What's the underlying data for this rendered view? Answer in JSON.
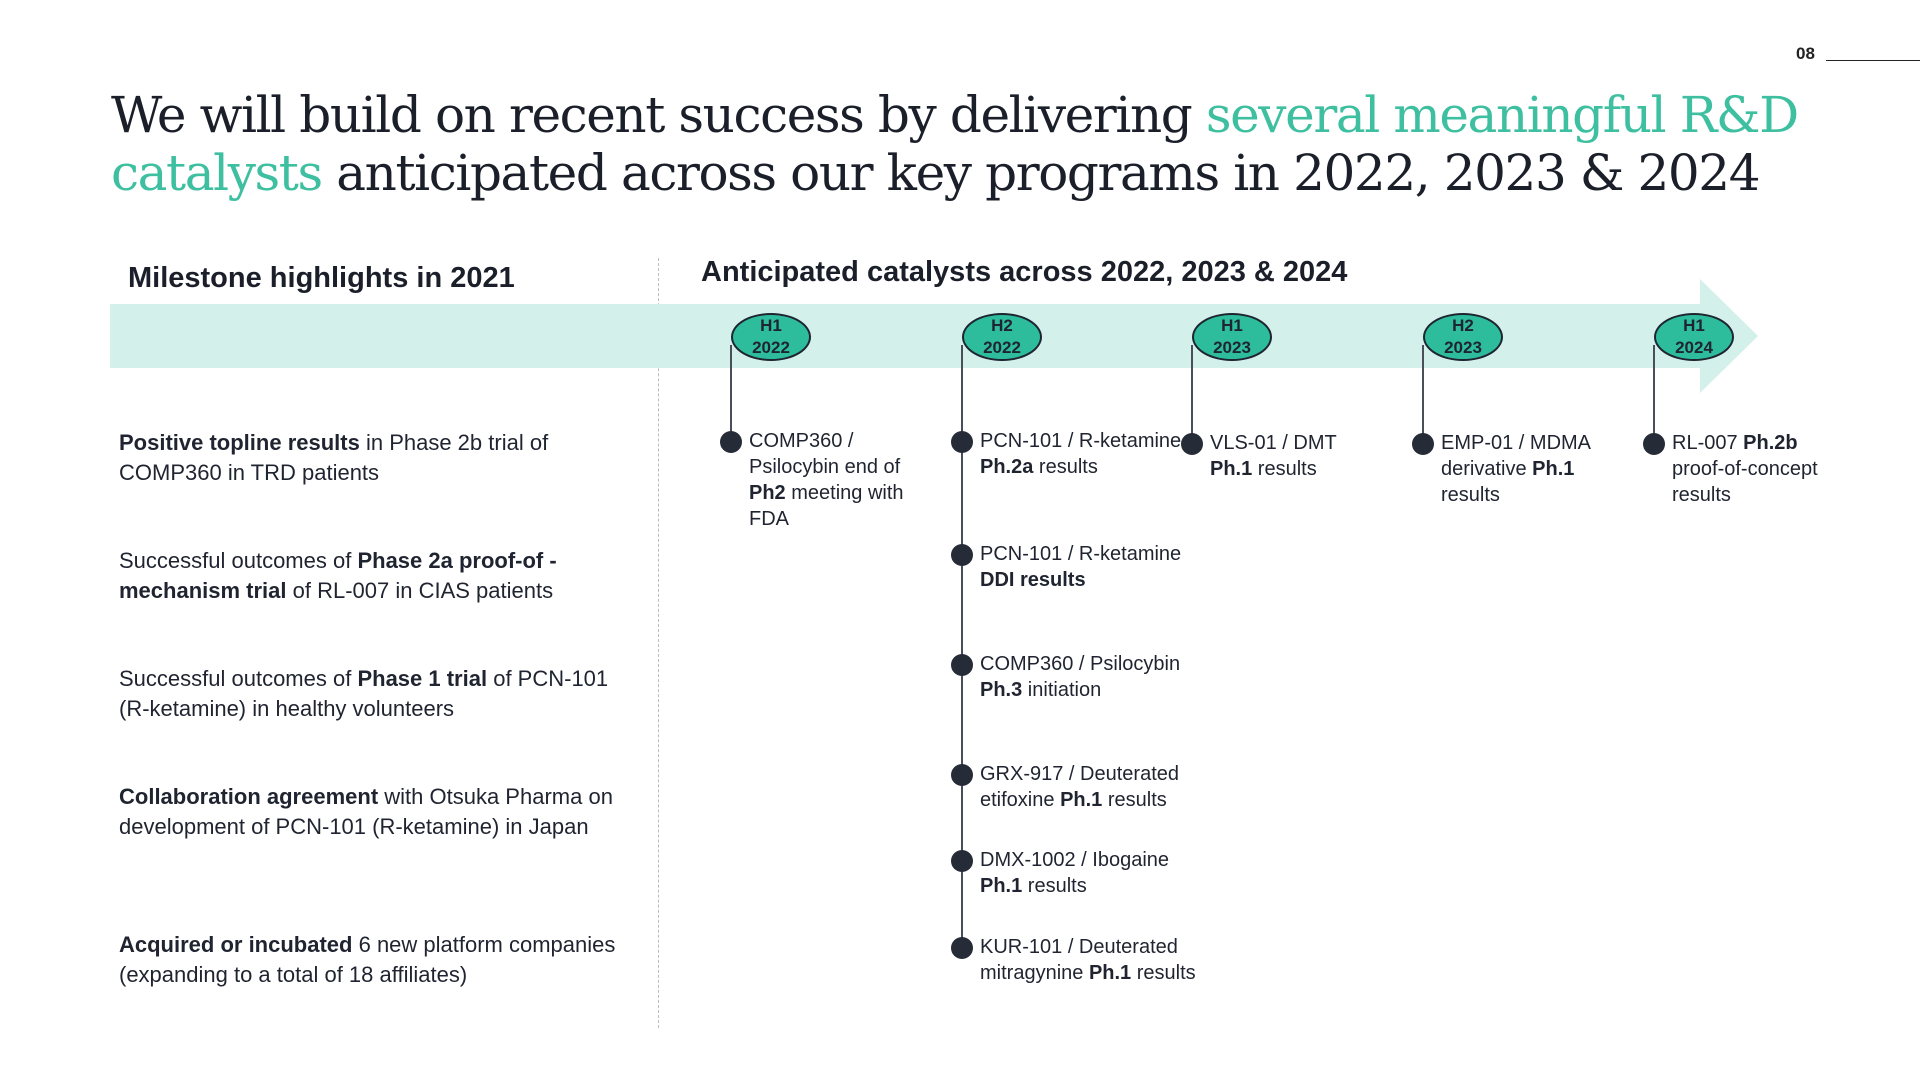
{
  "page_number": "08",
  "title": {
    "part1": "We will build on recent success by delivering ",
    "accent": "several meaningful R&D catalysts",
    "part2": " anticipated across our key programs in 2022, 2023 & 2024"
  },
  "left_heading": "Milestone highlights in 2021",
  "right_heading": "Anticipated catalysts across 2022, 2023 & 2024",
  "colors": {
    "accent": "#3dbfa0",
    "band": "#d3f0ea",
    "period_fill": "#2dbd9c",
    "dark": "#262b38"
  },
  "milestones": [
    [
      {
        "t": "Positive topline results",
        "b": true
      },
      {
        "t": " in Phase 2b trial of COMP360 in TRD patients",
        "b": false
      }
    ],
    [
      {
        "t": "Successful outcomes of ",
        "b": false
      },
      {
        "t": "Phase 2a proof-of - mechanism trial",
        "b": true
      },
      {
        "t": " of RL-007 in CIAS patients",
        "b": false
      }
    ],
    [
      {
        "t": "Successful outcomes of ",
        "b": false
      },
      {
        "t": "Phase 1 trial",
        "b": true
      },
      {
        "t": " of PCN-101 (R-ketamine) in healthy volunteers",
        "b": false
      }
    ],
    [
      {
        "t": "Collaboration agreement",
        "b": true
      },
      {
        "t": " with Otsuka Pharma on development of PCN-101 (R-ketamine) in Japan",
        "b": false
      }
    ],
    [
      {
        "t": "Acquired or incubated",
        "b": true
      },
      {
        "t": " 6 new platform companies (expanding to a total of 18 affiliates)",
        "b": false
      }
    ]
  ],
  "periods": [
    {
      "half": "H1",
      "year": "2022",
      "items": [
        [
          {
            "t": "COMP360 / Psilocybin end of ",
            "b": false
          },
          {
            "t": "Ph2",
            "b": true
          },
          {
            "t": " meeting with FDA",
            "b": false
          }
        ]
      ]
    },
    {
      "half": "H2",
      "year": "2022",
      "items": [
        [
          {
            "t": "PCN-101 / R-ketamine ",
            "b": false
          },
          {
            "t": "Ph.2a",
            "b": true
          },
          {
            "t": " results",
            "b": false
          }
        ],
        [
          {
            "t": "PCN-101 / R-ketamine ",
            "b": false
          },
          {
            "t": "DDI results",
            "b": true
          }
        ],
        [
          {
            "t": "COMP360 / Psilocybin ",
            "b": false
          },
          {
            "t": "Ph.3",
            "b": true
          },
          {
            "t": " initiation",
            "b": false
          }
        ],
        [
          {
            "t": "GRX-917 / Deuterated etifoxine ",
            "b": false
          },
          {
            "t": "Ph.1",
            "b": true
          },
          {
            "t": " results",
            "b": false
          }
        ],
        [
          {
            "t": "DMX-1002 / Ibogaine ",
            "b": false
          },
          {
            "t": "Ph.1",
            "b": true
          },
          {
            "t": " results",
            "b": false
          }
        ],
        [
          {
            "t": "KUR-101 / Deuterated mitragynine ",
            "b": false
          },
          {
            "t": "Ph.1",
            "b": true
          },
          {
            "t": " results",
            "b": false
          }
        ]
      ]
    },
    {
      "half": "H1",
      "year": "2023",
      "items": [
        [
          {
            "t": "VLS-01 / DMT ",
            "b": false
          },
          {
            "t": "Ph.1",
            "b": true
          },
          {
            "t": " results",
            "b": false
          }
        ]
      ]
    },
    {
      "half": "H2",
      "year": "2023",
      "items": [
        [
          {
            "t": "EMP-01 / MDMA derivative ",
            "b": false
          },
          {
            "t": "Ph.1",
            "b": true
          },
          {
            "t": " results",
            "b": false
          }
        ]
      ]
    },
    {
      "half": "H1",
      "year": "2024",
      "items": [
        [
          {
            "t": "RL-007 ",
            "b": false
          },
          {
            "t": "Ph.2b",
            "b": true
          },
          {
            "t": " proof-of-concept results",
            "b": false
          }
        ]
      ]
    }
  ]
}
